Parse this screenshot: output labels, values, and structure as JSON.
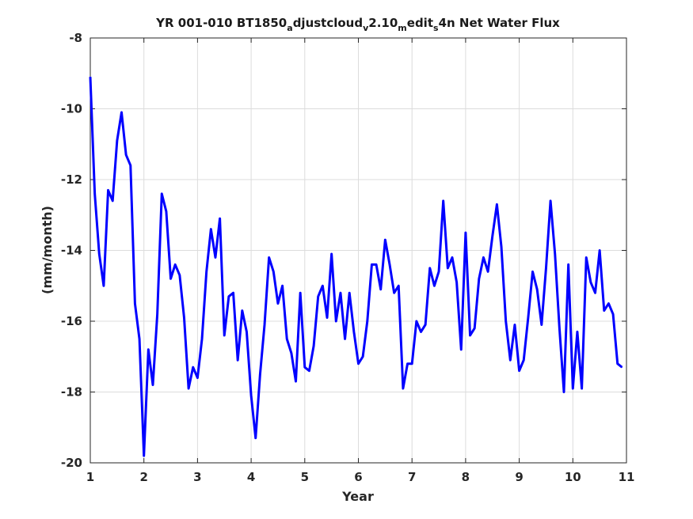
{
  "chart_data": {
    "type": "line",
    "title": {
      "prefix": "YR 001-010 BT1850",
      "sub1": "a",
      "mid1": "djustcloud",
      "sub2": "v",
      "mid2": "2.10",
      "sub3": "m",
      "mid3": "edit",
      "sub4": "s",
      "suffix": "4n Net Water Flux"
    },
    "xlabel": "Year",
    "ylabel": "(mm/month)",
    "xlim": [
      1,
      11
    ],
    "ylim": [
      -20,
      -8
    ],
    "xticks": [
      1,
      2,
      3,
      4,
      5,
      6,
      7,
      8,
      9,
      10,
      11
    ],
    "yticks": [
      -20,
      -18,
      -16,
      -14,
      -12,
      -10,
      -8
    ],
    "grid": true,
    "color": "#0000ff",
    "series": [
      {
        "x": [
          1.0,
          1.0833,
          1.1667,
          1.25,
          1.3333,
          1.4167,
          1.5,
          1.5833,
          1.6667,
          1.75,
          1.8333,
          1.9167,
          2.0,
          2.0833,
          2.1667,
          2.25,
          2.3333,
          2.4167,
          2.5,
          2.5833,
          2.6667,
          2.75,
          2.8333,
          2.9167,
          3.0,
          3.0833,
          3.1667,
          3.25,
          3.3333,
          3.4167,
          3.5,
          3.5833,
          3.6667,
          3.75,
          3.8333,
          3.9167,
          4.0,
          4.0833,
          4.1667,
          4.25,
          4.3333,
          4.4167,
          4.5,
          4.5833,
          4.6667,
          4.75,
          4.8333,
          4.9167,
          5.0,
          5.0833,
          5.1667,
          5.25,
          5.3333,
          5.4167,
          5.5,
          5.5833,
          5.6667,
          5.75,
          5.8333,
          5.9167,
          6.0,
          6.0833,
          6.1667,
          6.25,
          6.3333,
          6.4167,
          6.5,
          6.5833,
          6.6667,
          6.75,
          6.8333,
          6.9167,
          7.0,
          7.0833,
          7.1667,
          7.25,
          7.3333,
          7.4167,
          7.5,
          7.5833,
          7.6667,
          7.75,
          7.8333,
          7.9167,
          8.0,
          8.0833,
          8.1667,
          8.25,
          8.3333,
          8.4167,
          8.5,
          8.5833,
          8.6667,
          8.75,
          8.8333,
          8.9167,
          9.0,
          9.0833,
          9.1667,
          9.25,
          9.3333,
          9.4167,
          9.5,
          9.5833,
          9.6667,
          9.75,
          9.8333,
          9.9167,
          10.0,
          10.0833,
          10.1667,
          10.25,
          10.3333,
          10.4167,
          10.5,
          10.5833,
          10.6667,
          10.75,
          10.8333,
          10.9167
        ],
        "y": [
          -9.1,
          -12.4,
          -14.1,
          -15.0,
          -12.3,
          -12.6,
          -10.9,
          -10.1,
          -11.3,
          -11.6,
          -15.5,
          -16.5,
          -19.8,
          -16.8,
          -17.8,
          -15.8,
          -12.4,
          -12.9,
          -14.8,
          -14.4,
          -14.7,
          -15.9,
          -17.9,
          -17.3,
          -17.6,
          -16.5,
          -14.6,
          -13.4,
          -14.2,
          -13.1,
          -16.4,
          -15.3,
          -15.2,
          -17.1,
          -15.7,
          -16.3,
          -18.1,
          -19.3,
          -17.5,
          -16.1,
          -14.2,
          -14.6,
          -15.5,
          -15.0,
          -16.5,
          -16.9,
          -17.7,
          -15.2,
          -17.3,
          -17.4,
          -16.7,
          -15.3,
          -15.0,
          -15.9,
          -14.1,
          -16.0,
          -15.2,
          -16.5,
          -15.2,
          -16.3,
          -17.2,
          -17.0,
          -16.0,
          -14.4,
          -14.4,
          -15.1,
          -13.7,
          -14.4,
          -15.2,
          -15.0,
          -17.9,
          -17.2,
          -17.2,
          -16.0,
          -16.3,
          -16.1,
          -14.5,
          -15.0,
          -14.6,
          -12.6,
          -14.5,
          -14.2,
          -14.9,
          -16.8,
          -13.5,
          -16.4,
          -16.2,
          -14.8,
          -14.2,
          -14.6,
          -13.6,
          -12.7,
          -13.9,
          -16.0,
          -17.1,
          -16.1,
          -17.4,
          -17.1,
          -15.9,
          -14.6,
          -15.1,
          -16.1,
          -14.5,
          -12.6,
          -14.1,
          -16.2,
          -18.0,
          -14.4,
          -17.9,
          -16.3,
          -17.9,
          -14.2,
          -14.9,
          -15.2,
          -14.0,
          -15.7,
          -15.5,
          -15.8,
          -17.2,
          -17.3
        ]
      }
    ]
  }
}
